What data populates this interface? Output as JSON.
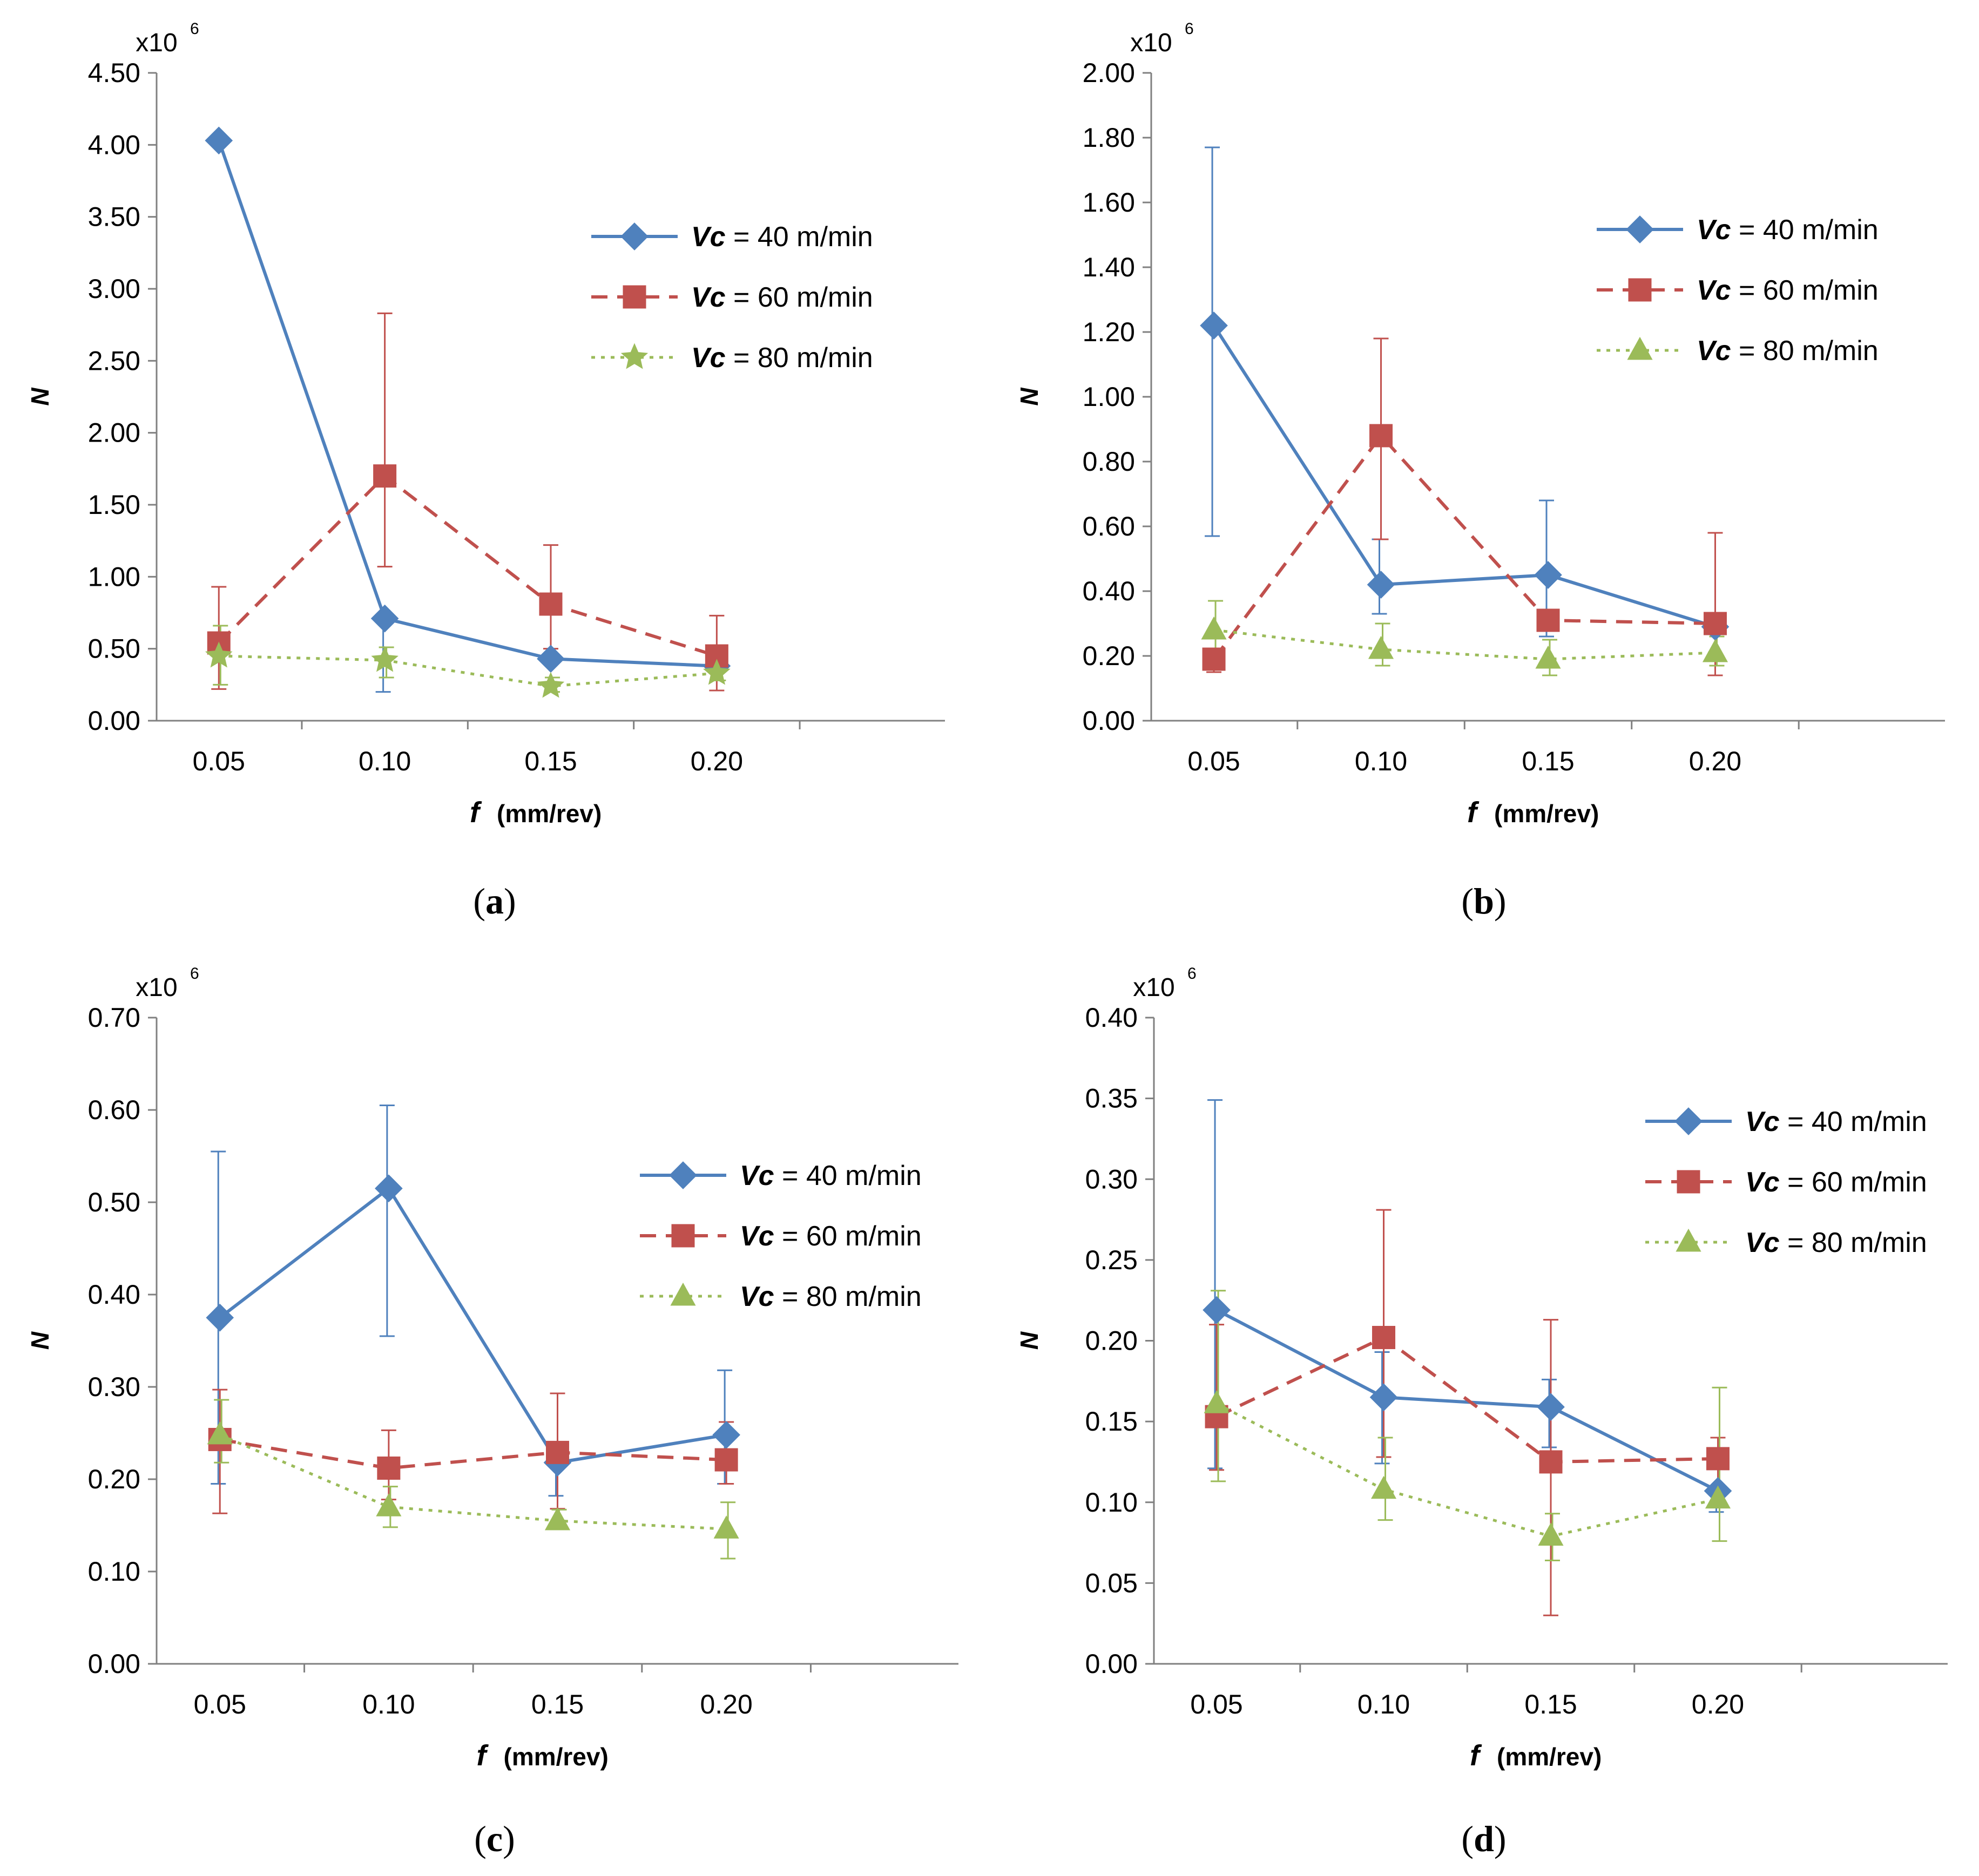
{
  "chart_data": [
    {
      "type": "line",
      "panel_label": "a",
      "scale_label": "x10",
      "scale_exp": "6",
      "ylabel": "N",
      "xlabel_symbol": "f",
      "xlabel_units": "(mm/rev)",
      "categories": [
        "0.05",
        "0.10",
        "0.15",
        "0.20"
      ],
      "ylim": [
        0,
        4.5
      ],
      "yticks": [
        "0.00",
        "0.50",
        "1.00",
        "1.50",
        "2.00",
        "2.50",
        "3.00",
        "3.50",
        "4.00",
        "4.50"
      ],
      "legend_placement": "top-right",
      "series": [
        {
          "name_sym": "Vc",
          "name_rest": " = 40 m/min",
          "color": "#4f81bd",
          "dash": "solid",
          "marker": "diamond",
          "values": [
            4.03,
            0.71,
            0.43,
            0.38
          ],
          "err_up": [
            null,
            null,
            null,
            null
          ],
          "err_down": [
            null,
            0.2,
            null,
            null
          ]
        },
        {
          "name_sym": "Vc",
          "name_rest": " = 60 m/min",
          "color": "#c0504d",
          "dash": "dashed",
          "marker": "square",
          "values": [
            0.54,
            1.7,
            0.81,
            0.45
          ],
          "err_up": [
            0.93,
            2.83,
            1.22,
            0.73
          ],
          "err_down": [
            0.22,
            1.07,
            0.5,
            0.21
          ]
        },
        {
          "name_sym": "Vc",
          "name_rest": " = 80 m/min",
          "color": "#9bbb59",
          "dash": "dotted",
          "marker": "star",
          "values": [
            0.45,
            0.42,
            0.24,
            0.33
          ],
          "err_up": [
            0.66,
            0.51,
            0.3,
            0.4
          ],
          "err_down": [
            0.25,
            0.3,
            0.2,
            0.28
          ]
        }
      ]
    },
    {
      "type": "line",
      "panel_label": "b",
      "scale_label": "x10",
      "scale_exp": "6",
      "ylabel": "N",
      "xlabel_symbol": "f",
      "xlabel_units": "(mm/rev)",
      "categories": [
        "0.05",
        "0.10",
        "0.15",
        "0.20"
      ],
      "ylim": [
        0,
        2.0
      ],
      "yticks": [
        "0.00",
        "0.20",
        "0.40",
        "0.60",
        "0.80",
        "1.00",
        "1.20",
        "1.40",
        "1.60",
        "1.80",
        "2.00"
      ],
      "legend_placement": "top-right",
      "series": [
        {
          "name_sym": "Vc",
          "name_rest": " = 40 m/min",
          "color": "#4f81bd",
          "dash": "solid",
          "marker": "diamond",
          "values": [
            1.22,
            0.42,
            0.45,
            0.29
          ],
          "err_up": [
            1.77,
            0.56,
            0.68,
            null
          ],
          "err_down": [
            0.57,
            0.33,
            0.26,
            null
          ]
        },
        {
          "name_sym": "Vc",
          "name_rest": " = 60 m/min",
          "color": "#c0504d",
          "dash": "dashed",
          "marker": "square",
          "values": [
            0.19,
            0.88,
            0.31,
            0.3
          ],
          "err_up": [
            null,
            1.18,
            null,
            0.58
          ],
          "err_down": [
            0.15,
            0.56,
            null,
            0.14
          ]
        },
        {
          "name_sym": "Vc",
          "name_rest": " = 80 m/min",
          "color": "#9bbb59",
          "dash": "dotted",
          "marker": "triangle",
          "values": [
            0.28,
            0.22,
            0.19,
            0.21
          ],
          "err_up": [
            0.37,
            0.3,
            0.25,
            0.26
          ],
          "err_down": [
            0.19,
            0.17,
            0.14,
            0.17
          ]
        }
      ]
    },
    {
      "type": "line",
      "panel_label": "c",
      "scale_label": "x10",
      "scale_exp": "6",
      "ylabel": "N",
      "xlabel_symbol": "f",
      "xlabel_units": "(mm/rev)",
      "categories": [
        "0.05",
        "0.10",
        "0.15",
        "0.20"
      ],
      "ylim": [
        0,
        0.7
      ],
      "yticks": [
        "0.00",
        "0.10",
        "0.20",
        "0.30",
        "0.40",
        "0.50",
        "0.60",
        "0.70"
      ],
      "legend_placement": "right",
      "series": [
        {
          "name_sym": "Vc",
          "name_rest": " = 40 m/min",
          "color": "#4f81bd",
          "dash": "solid",
          "marker": "diamond",
          "values": [
            0.375,
            0.515,
            0.218,
            0.248
          ],
          "err_up": [
            0.555,
            0.605,
            null,
            0.318
          ],
          "err_down": [
            0.195,
            0.355,
            0.182,
            0.195
          ]
        },
        {
          "name_sym": "Vc",
          "name_rest": " = 60 m/min",
          "color": "#c0504d",
          "dash": "dashed",
          "marker": "square",
          "values": [
            0.243,
            0.212,
            0.229,
            0.221
          ],
          "err_up": [
            0.297,
            0.253,
            0.293,
            0.262
          ],
          "err_down": [
            0.163,
            0.178,
            0.168,
            0.195
          ]
        },
        {
          "name_sym": "Vc",
          "name_rest": " = 80 m/min",
          "color": "#9bbb59",
          "dash": "dotted",
          "marker": "triangle",
          "values": [
            0.248,
            0.17,
            0.155,
            0.146
          ],
          "err_up": [
            0.286,
            0.192,
            0.167,
            0.175
          ],
          "err_down": [
            0.218,
            0.148,
            0.148,
            0.114
          ]
        }
      ]
    },
    {
      "type": "line",
      "panel_label": "d",
      "scale_label": "x10",
      "scale_exp": "6",
      "ylabel": "N",
      "xlabel_symbol": "f",
      "xlabel_units": "(mm/rev)",
      "categories": [
        "0.05",
        "0.10",
        "0.15",
        "0.20"
      ],
      "ylim": [
        0,
        0.4
      ],
      "yticks": [
        "0.00",
        "0.05",
        "0.10",
        "0.15",
        "0.20",
        "0.25",
        "0.30",
        "0.35",
        "0.40"
      ],
      "legend_placement": "top-right",
      "series": [
        {
          "name_sym": "Vc",
          "name_rest": " = 40 m/min",
          "color": "#4f81bd",
          "dash": "solid",
          "marker": "diamond",
          "values": [
            0.219,
            0.165,
            0.159,
            0.107
          ],
          "err_up": [
            0.349,
            0.193,
            0.176,
            null
          ],
          "err_down": [
            0.121,
            0.124,
            0.134,
            0.094
          ]
        },
        {
          "name_sym": "Vc",
          "name_rest": " = 60 m/min",
          "color": "#c0504d",
          "dash": "dashed",
          "marker": "square",
          "values": [
            0.153,
            0.202,
            0.125,
            0.127
          ],
          "err_up": [
            0.21,
            0.281,
            0.213,
            0.14
          ],
          "err_down": [
            0.12,
            0.128,
            0.03,
            0.11
          ]
        },
        {
          "name_sym": "Vc",
          "name_rest": " = 80 m/min",
          "color": "#9bbb59",
          "dash": "dotted",
          "marker": "triangle",
          "values": [
            0.161,
            0.108,
            0.079,
            0.102
          ],
          "err_up": [
            0.231,
            0.14,
            0.093,
            0.171
          ],
          "err_down": [
            0.113,
            0.089,
            0.064,
            0.076
          ]
        }
      ]
    }
  ]
}
